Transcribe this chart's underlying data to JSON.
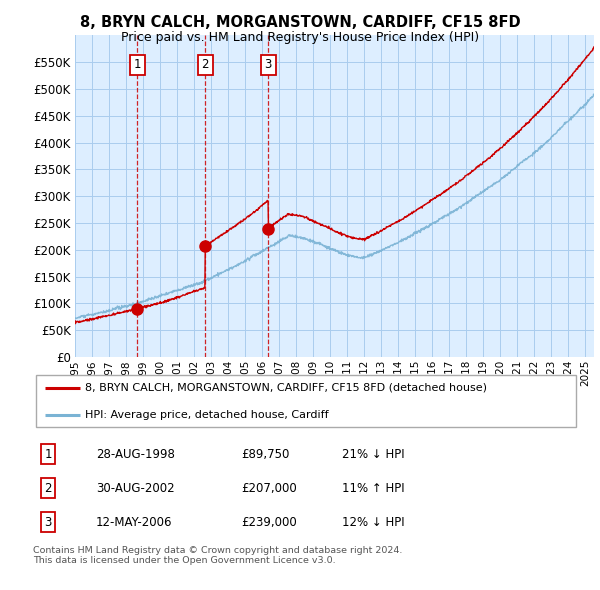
{
  "title": "8, BRYN CALCH, MORGANSTOWN, CARDIFF, CF15 8FD",
  "subtitle": "Price paid vs. HM Land Registry's House Price Index (HPI)",
  "ylim": [
    0,
    600000
  ],
  "yticks": [
    0,
    50000,
    100000,
    150000,
    200000,
    250000,
    300000,
    350000,
    400000,
    450000,
    500000,
    550000
  ],
  "xlim_start": 1995.0,
  "xlim_end": 2025.5,
  "sale_dates": [
    1998.65,
    2002.65,
    2006.36
  ],
  "sale_prices": [
    89750,
    207000,
    239000
  ],
  "sale_labels": [
    "1",
    "2",
    "3"
  ],
  "vline_color": "#cc0000",
  "sale_marker_color": "#cc0000",
  "legend_entries": [
    "8, BRYN CALCH, MORGANSTOWN, CARDIFF, CF15 8FD (detached house)",
    "HPI: Average price, detached house, Cardiff"
  ],
  "table_rows": [
    [
      "1",
      "28-AUG-1998",
      "£89,750",
      "21% ↓ HPI"
    ],
    [
      "2",
      "30-AUG-2002",
      "£207,000",
      "11% ↑ HPI"
    ],
    [
      "3",
      "12-MAY-2006",
      "£239,000",
      "12% ↓ HPI"
    ]
  ],
  "footer": "Contains HM Land Registry data © Crown copyright and database right 2024.\nThis data is licensed under the Open Government Licence v3.0.",
  "hpi_line_color": "#7ab3d4",
  "sale_line_color": "#cc0000",
  "chart_bg_color": "#ddeeff",
  "background_color": "#ffffff",
  "grid_color": "#aaccee"
}
